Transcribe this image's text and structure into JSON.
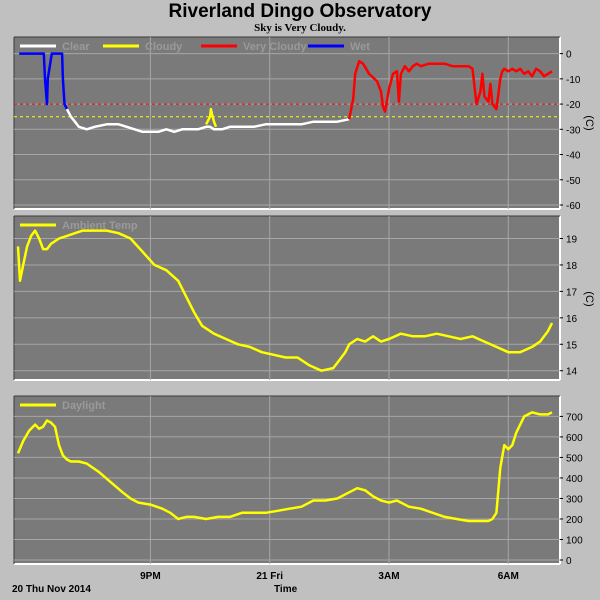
{
  "header": {
    "title": "Riverland Dingo Observatory",
    "subtitle": "Sky is Very Cloudy."
  },
  "x_axis": {
    "label": "Time",
    "start_label": "20 Thu Nov 2014"
  },
  "colors": {
    "plot_bg": "#7a7a7a",
    "grid": "#a6a6a6",
    "clear": "#ffffff",
    "cloudy": "#ffff00",
    "very_cloudy": "#ff0000",
    "wet": "#0000ff",
    "threshold_red": "#ff0000",
    "threshold_yellow": "#ffff00"
  },
  "chart_data": [
    {
      "type": "line",
      "name": "sky",
      "ylabel": "(C)",
      "ylim": [
        -60,
        5
      ],
      "yticks": [
        0,
        -10,
        -20,
        -30,
        -40,
        -50,
        -60
      ],
      "xlim": [
        17.67,
        31.2
      ],
      "xticks": [
        {
          "v": 21,
          "label": "9PM"
        },
        {
          "v": 24,
          "label": "21 Fri"
        },
        {
          "v": 27,
          "label": "3AM"
        },
        {
          "v": 30,
          "label": "6AM"
        }
      ],
      "thresholds": [
        {
          "y": -20,
          "color": "#ff0000"
        },
        {
          "y": -25,
          "color": "#ffff00"
        }
      ],
      "legend": [
        "Clear",
        "Cloudy",
        "Very Cloudy",
        "Wet"
      ],
      "series": [
        {
          "name": "Wet",
          "color": "#0000ff",
          "x": [
            17.7,
            17.88,
            18.32,
            18.35,
            18.4,
            18.42,
            18.52,
            18.78,
            18.8,
            18.84,
            18.9
          ],
          "y": [
            0,
            0,
            0,
            -10,
            -20,
            -10,
            0,
            0,
            -10,
            -20,
            -22
          ]
        },
        {
          "name": "Clear",
          "color": "#ffffff",
          "x": [
            18.9,
            19.0,
            19.1,
            19.2,
            19.4,
            19.6,
            19.9,
            20.2,
            20.4,
            20.6,
            20.8,
            21.0,
            21.2,
            21.4,
            21.6,
            21.8,
            22.0,
            22.2,
            22.4,
            22.5,
            22.6,
            22.8,
            23.0,
            23.3,
            23.6,
            23.9,
            24.2,
            24.5,
            24.8,
            25.1,
            25.4,
            25.7,
            26.0
          ],
          "y": [
            -22,
            -25,
            -27,
            -29,
            -30,
            -29,
            -28,
            -28,
            -29,
            -30,
            -31,
            -31,
            -31,
            -30,
            -31,
            -30,
            -30,
            -30,
            -29,
            -29,
            -30,
            -30,
            -29,
            -29,
            -29,
            -28,
            -28,
            -28,
            -28,
            -27,
            -27,
            -27,
            -26
          ]
        },
        {
          "name": "Cloudy",
          "color": "#ffff00",
          "x": [
            22.4,
            22.5,
            22.52,
            22.55,
            22.6,
            22.65
          ],
          "y": [
            -28,
            -25,
            -22,
            -24,
            -27,
            -29
          ]
        },
        {
          "name": "Very Cloudy",
          "color": "#ff0000",
          "x": [
            26.0,
            26.1,
            26.15,
            26.25,
            26.35,
            26.5,
            26.7,
            26.8,
            26.85,
            26.9,
            27.0,
            27.1,
            27.2,
            27.25,
            27.3,
            27.4,
            27.5,
            27.6,
            27.7,
            27.8,
            28.0,
            28.2,
            28.4,
            28.6,
            28.8,
            29.0,
            29.1,
            29.2,
            29.3,
            29.35,
            29.4,
            29.5,
            29.55,
            29.6,
            29.7,
            29.8,
            29.85,
            29.9,
            30.0,
            30.1,
            30.2,
            30.3,
            30.4,
            30.5,
            30.6,
            30.7,
            30.8,
            30.9,
            31.0,
            31.1
          ],
          "y": [
            -26,
            -18,
            -8,
            -3,
            -4,
            -8,
            -11,
            -15,
            -21,
            -23,
            -14,
            -8,
            -7,
            -19,
            -8,
            -5,
            -7,
            -5,
            -4,
            -5,
            -4,
            -4,
            -4,
            -5,
            -5,
            -5,
            -6,
            -20,
            -15,
            -8,
            -17,
            -19,
            -12,
            -20,
            -22,
            -10,
            -7,
            -6,
            -7,
            -6,
            -7,
            -6,
            -8,
            -7,
            -9,
            -6,
            -7,
            -9,
            -8,
            -7
          ]
        }
      ]
    },
    {
      "type": "line",
      "name": "ambient",
      "ylabel": "(C)",
      "ylim": [
        13.8,
        19.7
      ],
      "yticks": [
        14,
        15,
        16,
        17,
        18,
        19
      ],
      "xlim": [
        17.67,
        31.2
      ],
      "xticks": [
        {
          "v": 21,
          "label": "9PM"
        },
        {
          "v": 24,
          "label": "21 Fri"
        },
        {
          "v": 27,
          "label": "3AM"
        },
        {
          "v": 30,
          "label": "6AM"
        }
      ],
      "legend": [
        "Ambient Temp"
      ],
      "series": [
        {
          "name": "Ambient Temp",
          "color": "#ffff00",
          "x": [
            17.67,
            17.72,
            17.8,
            17.9,
            18.0,
            18.1,
            18.2,
            18.3,
            18.4,
            18.5,
            18.7,
            18.9,
            19.1,
            19.3,
            19.6,
            19.9,
            20.2,
            20.5,
            20.8,
            21.1,
            21.4,
            21.7,
            21.9,
            22.1,
            22.3,
            22.6,
            22.9,
            23.2,
            23.5,
            23.8,
            24.1,
            24.4,
            24.7,
            25.0,
            25.3,
            25.6,
            25.9,
            26.0,
            26.2,
            26.4,
            26.6,
            26.8,
            27.0,
            27.3,
            27.6,
            27.9,
            28.2,
            28.5,
            28.8,
            29.1,
            29.4,
            29.7,
            30.0,
            30.3,
            30.6,
            30.8,
            30.9,
            31.0,
            31.1
          ],
          "y": [
            18.7,
            17.4,
            18.0,
            18.7,
            19.1,
            19.3,
            19.0,
            18.6,
            18.6,
            18.8,
            19.0,
            19.1,
            19.2,
            19.3,
            19.3,
            19.3,
            19.2,
            19.0,
            18.5,
            18.0,
            17.8,
            17.4,
            16.8,
            16.2,
            15.7,
            15.4,
            15.2,
            15.0,
            14.9,
            14.7,
            14.6,
            14.5,
            14.5,
            14.2,
            14.0,
            14.1,
            14.7,
            15.0,
            15.2,
            15.1,
            15.3,
            15.1,
            15.2,
            15.4,
            15.3,
            15.3,
            15.4,
            15.3,
            15.2,
            15.3,
            15.1,
            14.9,
            14.7,
            14.7,
            14.9,
            15.1,
            15.3,
            15.5,
            15.8
          ]
        }
      ]
    },
    {
      "type": "line",
      "name": "daylight",
      "ylabel": "",
      "ylim": [
        0,
        780
      ],
      "yticks": [
        0,
        100,
        200,
        300,
        400,
        500,
        600,
        700
      ],
      "xlim": [
        17.67,
        31.2
      ],
      "xticks": [
        {
          "v": 21,
          "label": "9PM"
        },
        {
          "v": 24,
          "label": "21 Fri"
        },
        {
          "v": 27,
          "label": "3AM"
        },
        {
          "v": 30,
          "label": "6AM"
        }
      ],
      "legend": [
        "Daylight"
      ],
      "series": [
        {
          "name": "Daylight",
          "color": "#ffff00",
          "x": [
            17.67,
            17.8,
            17.95,
            18.1,
            18.2,
            18.3,
            18.4,
            18.5,
            18.6,
            18.7,
            18.8,
            18.9,
            19.0,
            19.2,
            19.4,
            19.7,
            20.0,
            20.3,
            20.5,
            20.7,
            21.0,
            21.3,
            21.5,
            21.7,
            21.9,
            22.1,
            22.4,
            22.7,
            23.0,
            23.3,
            23.6,
            23.9,
            24.2,
            24.5,
            24.8,
            25.1,
            25.4,
            25.7,
            26.0,
            26.2,
            26.4,
            26.6,
            26.8,
            27.0,
            27.2,
            27.5,
            27.8,
            28.1,
            28.4,
            28.7,
            29.0,
            29.3,
            29.4,
            29.5,
            29.6,
            29.7,
            29.8,
            29.9,
            30.0,
            30.1,
            30.2,
            30.3,
            30.4,
            30.5,
            30.6,
            30.8,
            31.0,
            31.1
          ],
          "y": [
            520,
            580,
            630,
            660,
            640,
            650,
            680,
            670,
            650,
            560,
            510,
            490,
            480,
            480,
            470,
            430,
            380,
            330,
            300,
            280,
            270,
            250,
            230,
            200,
            210,
            210,
            200,
            210,
            210,
            230,
            230,
            230,
            240,
            250,
            260,
            290,
            290,
            300,
            330,
            350,
            340,
            310,
            290,
            280,
            290,
            260,
            250,
            230,
            210,
            200,
            190,
            190,
            190,
            190,
            200,
            230,
            450,
            560,
            540,
            560,
            620,
            660,
            700,
            710,
            720,
            710,
            710,
            720
          ]
        }
      ]
    }
  ]
}
